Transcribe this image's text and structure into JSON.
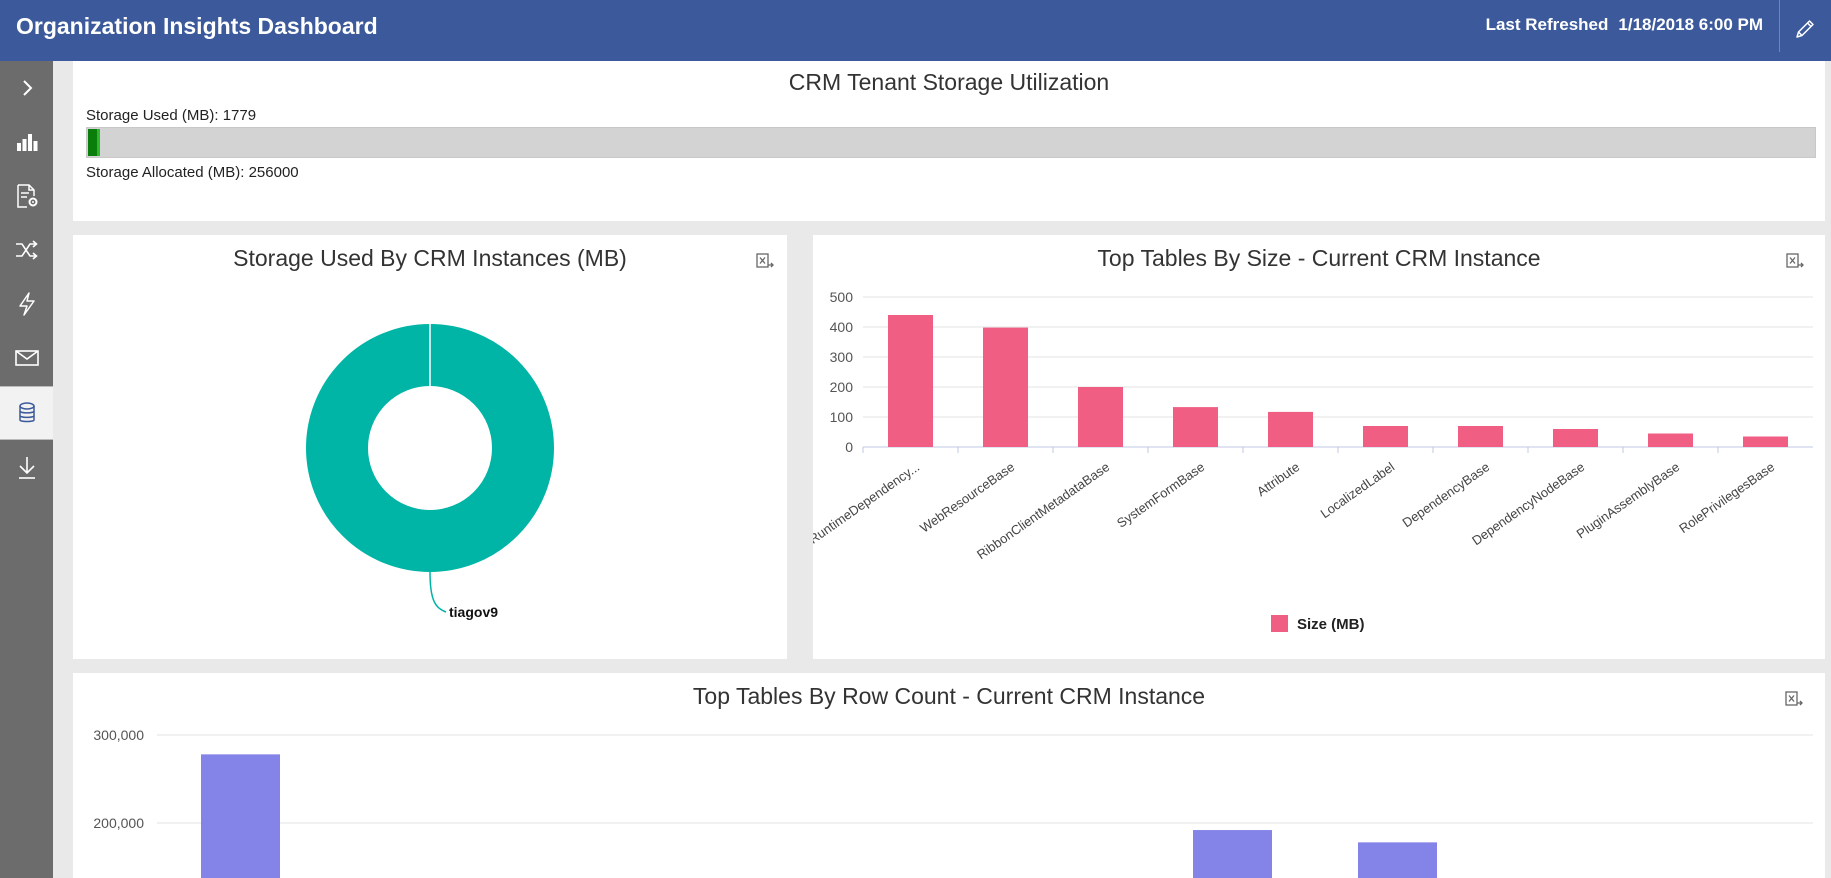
{
  "header": {
    "title": "Organization Insights Dashboard",
    "refresh_label": "Last Refreshed",
    "refresh_value": "1/18/2018 6:00 PM",
    "edit_icon": "pencil-icon"
  },
  "sidebar": {
    "items": [
      {
        "name": "expand",
        "icon": "chevron-right-icon"
      },
      {
        "name": "analytics",
        "icon": "bar-chart-icon"
      },
      {
        "name": "settings-doc",
        "icon": "document-gear-icon"
      },
      {
        "name": "shuffle",
        "icon": "shuffle-icon"
      },
      {
        "name": "activity",
        "icon": "lightning-icon"
      },
      {
        "name": "mail",
        "icon": "mail-icon"
      },
      {
        "name": "storage",
        "icon": "database-icon",
        "active": true
      },
      {
        "name": "download",
        "icon": "download-icon"
      }
    ]
  },
  "storage": {
    "title": "CRM Tenant Storage Utilization",
    "used_label": "Storage Used (MB): 1779",
    "allocated_label": "Storage Allocated (MB): 256000",
    "used_fraction": 0.00695,
    "used_color": "#0b7d0b"
  },
  "instances_panel": {
    "title": "Storage Used By CRM Instances (MB)"
  },
  "size_panel": {
    "title": "Top Tables By Size - Current CRM Instance",
    "legend": "Size (MB)"
  },
  "rows_panel": {
    "title": "Top Tables By Row Count - Current CRM Instance"
  },
  "chart_data": [
    {
      "type": "pie",
      "title": "Storage Used By CRM Instances (MB)",
      "categories": [
        "tiagov9"
      ],
      "values": [
        1779
      ],
      "colors": [
        "#00b5a6"
      ],
      "donut": true
    },
    {
      "type": "bar",
      "title": "Top Tables By Size - Current CRM Instance",
      "categories": [
        "RuntimeDependency...",
        "WebResourceBase",
        "RibbonClientMetadataBase",
        "SystemFormBase",
        "Attribute",
        "LocalizedLabel",
        "DependencyBase",
        "DependencyNodeBase",
        "PluginAssemblyBase",
        "RolePrivilegesBase"
      ],
      "series": [
        {
          "name": "Size (MB)",
          "values": [
            440,
            398,
            200,
            133,
            117,
            70,
            70,
            60,
            45,
            35
          ]
        }
      ],
      "yticks": [
        "0",
        "100",
        "200",
        "300",
        "400",
        "500"
      ],
      "ylim": [
        0,
        500
      ],
      "color": "#f05e84",
      "legend": "bottom"
    },
    {
      "type": "bar",
      "title": "Top Tables By Row Count - Current CRM Instance",
      "yticks": [
        "200,000",
        "300,000"
      ],
      "visible_bars": [
        {
          "value": 278000
        },
        {
          "value": 192000
        },
        {
          "value": 178000
        }
      ],
      "color": "#8383e8"
    }
  ]
}
